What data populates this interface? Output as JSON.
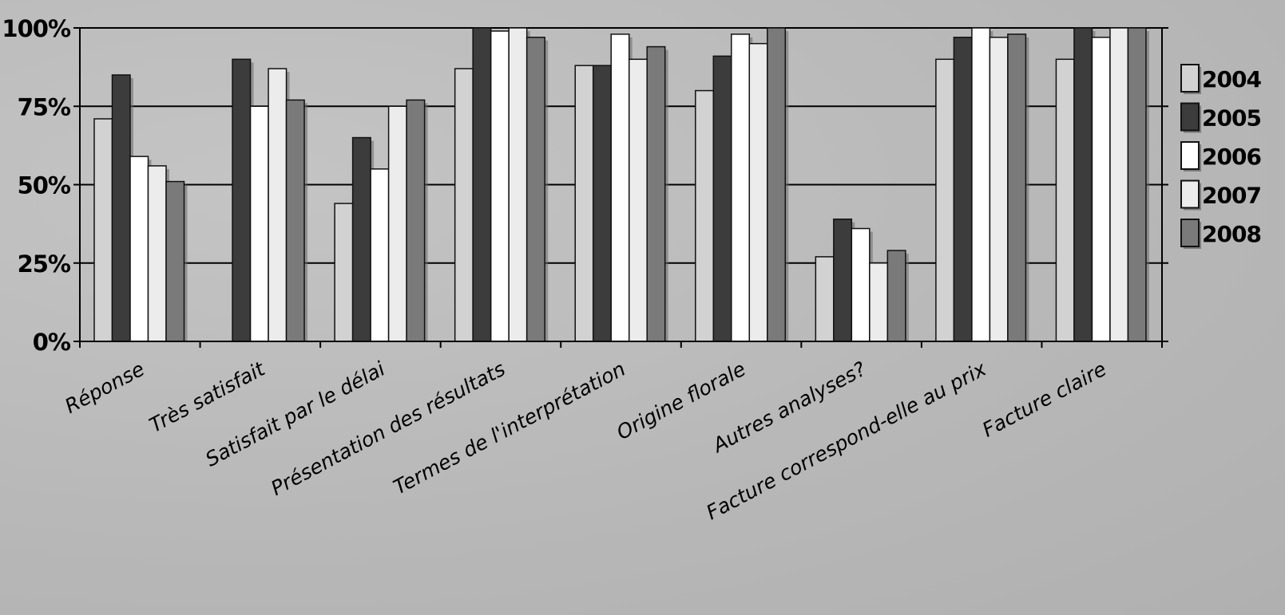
{
  "chart_data": {
    "type": "bar",
    "title": "",
    "xlabel": "",
    "ylabel": "",
    "ylim": [
      0,
      100
    ],
    "yticks": [
      0,
      25,
      50,
      75,
      100
    ],
    "ytick_labels": [
      "0%",
      "25%",
      "50%",
      "75%",
      "100%"
    ],
    "grid": true,
    "legend_position": "right",
    "categories": [
      "Réponse",
      "Très satisfait",
      "Satisfait par le délai",
      "Présentation  des résultats",
      "Termes de l'interprétation",
      "Origine florale",
      "Autres analyses?",
      "Facture correspond-elle au prix",
      "Facture claire"
    ],
    "series": [
      {
        "name": "2004",
        "color": "#d2d2d2",
        "values": [
          71,
          null,
          44,
          87,
          88,
          80,
          27,
          90,
          90
        ]
      },
      {
        "name": "2005",
        "color": "#3c3c3c",
        "values": [
          85,
          90,
          65,
          100,
          88,
          91,
          39,
          97,
          100
        ]
      },
      {
        "name": "2006",
        "color": "#ffffff",
        "values": [
          59,
          75,
          55,
          99,
          98,
          98,
          36,
          100,
          97
        ]
      },
      {
        "name": "2007",
        "color": "#ececec",
        "values": [
          56,
          87,
          75,
          100,
          90,
          95,
          25,
          97,
          100
        ]
      },
      {
        "name": "2008",
        "color": "#7a7a7a",
        "values": [
          51,
          77,
          77,
          97,
          94,
          100,
          29,
          98,
          100
        ]
      }
    ]
  }
}
